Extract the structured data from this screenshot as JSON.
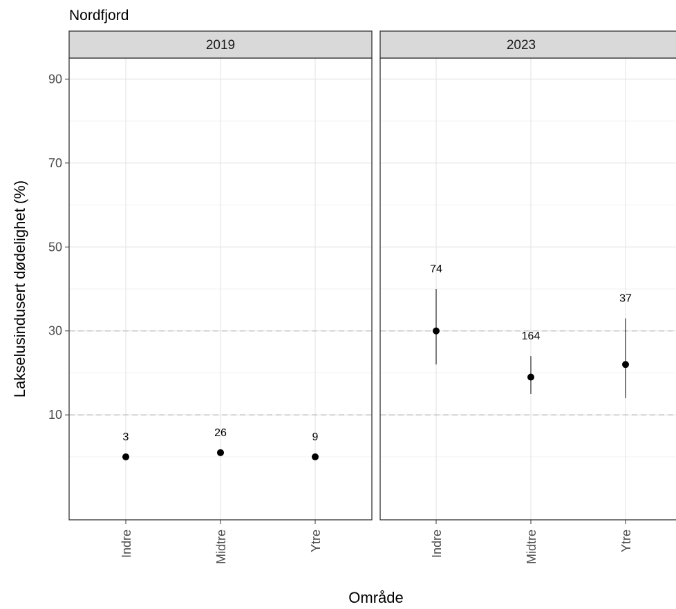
{
  "chart_data": {
    "type": "scatter",
    "title": "Nordfjord",
    "xlabel": "Område",
    "ylabel": "Lakselusindusert dødelighet (%)",
    "ylim": [
      -15,
      95
    ],
    "yticks": [
      10,
      30,
      50,
      70,
      90
    ],
    "categories": [
      "Indre",
      "Midtre",
      "Ytre"
    ],
    "reference_lines": [
      10,
      30
    ],
    "grid": true,
    "panels": [
      {
        "name": "2019",
        "points": [
          {
            "category": "Indre",
            "y": 0,
            "n": "3"
          },
          {
            "category": "Midtre",
            "y": 1,
            "n": "26"
          },
          {
            "category": "Ytre",
            "y": 0,
            "n": "9"
          }
        ]
      },
      {
        "name": "2023",
        "points": [
          {
            "category": "Indre",
            "y": 30,
            "ymin": 22,
            "ymax": 40,
            "n": "74"
          },
          {
            "category": "Midtre",
            "y": 19,
            "ymin": 15,
            "ymax": 24,
            "n": "164"
          },
          {
            "category": "Ytre",
            "y": 22,
            "ymin": 14,
            "ymax": 33,
            "n": "37"
          }
        ]
      }
    ]
  }
}
